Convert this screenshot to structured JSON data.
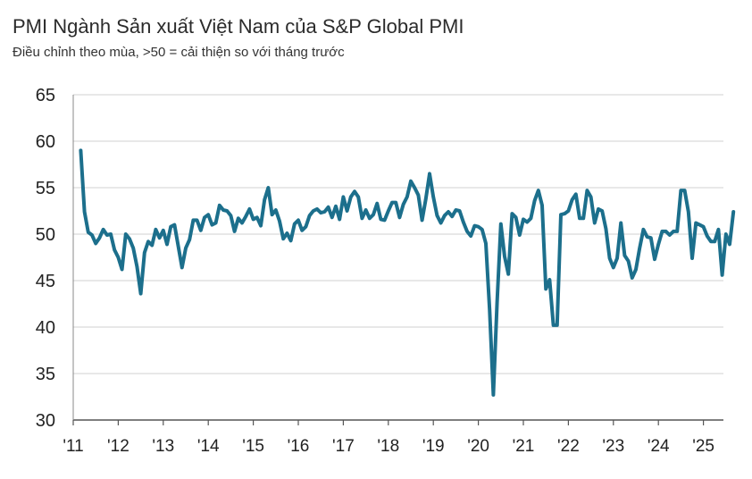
{
  "chart_data": {
    "type": "line",
    "title": "PMI Ngành Sản xuất Việt Nam của S&P Global PMI",
    "subtitle": "Điều chỉnh theo mùa, >50 = cải thiện so với tháng trước",
    "xlabel": "",
    "ylabel": "",
    "ylim": [
      30,
      65
    ],
    "y_ticks": [
      "65",
      "60",
      "55",
      "50",
      "45",
      "40",
      "35",
      "30"
    ],
    "x_tick_labels": [
      "'11",
      "'12",
      "'13",
      "'14",
      "'15",
      "'16",
      "'17",
      "'18",
      "'19",
      "'20",
      "'21",
      "'22",
      "'23",
      "'24",
      "'25"
    ],
    "grid": true,
    "line_color": "#1c6f8c",
    "series": [
      {
        "start": "2011-03",
        "frequency": "monthly",
        "values": [
          59.0,
          52.4,
          50.2,
          49.9,
          49.0,
          49.6,
          50.5,
          49.9,
          50.0,
          48.3,
          47.5,
          46.2,
          50.0,
          49.5,
          48.5,
          46.5,
          43.6,
          48.0,
          49.2,
          48.8,
          50.5,
          49.6,
          50.4,
          48.9,
          50.8,
          51.0,
          48.7,
          46.4,
          48.5,
          49.4,
          51.5,
          51.5,
          50.4,
          51.8,
          52.1,
          51.0,
          51.2,
          53.1,
          52.6,
          52.5,
          52.0,
          50.3,
          51.7,
          51.2,
          51.9,
          52.7,
          51.6,
          51.8,
          50.9,
          53.7,
          55.0,
          52.1,
          52.6,
          51.4,
          49.5,
          50.1,
          49.3,
          51.1,
          51.5,
          50.4,
          50.8,
          52.0,
          52.5,
          52.7,
          52.3,
          52.4,
          52.9,
          51.8,
          53.0,
          51.6,
          54.0,
          52.5,
          54.0,
          54.6,
          54.0,
          51.7,
          52.6,
          51.7,
          52.1,
          53.3,
          51.6,
          51.5,
          52.5,
          53.4,
          53.4,
          51.8,
          53.2,
          54.0,
          55.7,
          55.0,
          54.2,
          51.5,
          53.8,
          56.5,
          54.0,
          52.0,
          51.2,
          52.0,
          52.4,
          51.9,
          52.6,
          52.5,
          51.3,
          50.3,
          49.8,
          50.9,
          50.8,
          50.5,
          49.0,
          41.9,
          32.7,
          42.7,
          51.1,
          47.6,
          45.7,
          52.2,
          51.8,
          49.9,
          51.6,
          51.3,
          51.7,
          53.6,
          54.7,
          53.1,
          44.1,
          45.1,
          40.2,
          40.2,
          52.1,
          52.2,
          52.5,
          53.7,
          54.3,
          51.7,
          51.7,
          54.7,
          54.0,
          51.2,
          52.7,
          52.5,
          50.6,
          47.4,
          46.4,
          47.4,
          51.2,
          47.7,
          47.1,
          45.3,
          46.2,
          48.5,
          50.5,
          49.7,
          49.6,
          47.3,
          48.9,
          50.3,
          50.3,
          49.9,
          50.3,
          50.3,
          54.7,
          54.7,
          52.4,
          47.4,
          51.2,
          51.0,
          50.8,
          49.8,
          49.2,
          49.2,
          50.5,
          45.6,
          50.0,
          48.9,
          52.4
        ]
      }
    ]
  }
}
